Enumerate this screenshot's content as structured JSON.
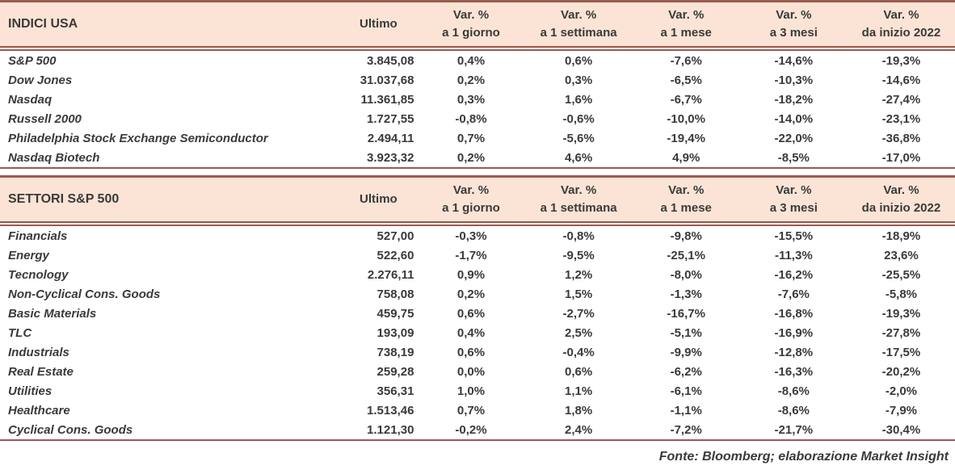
{
  "colors": {
    "header_bg": "#fbe4d5",
    "border": "#9a5a50",
    "text": "#3a3a3a"
  },
  "columns": {
    "ultimo_label": "Ultimo",
    "var_label": "Var. %",
    "periods": [
      "a 1 giorno",
      "a 1 settimana",
      "a 1 mese",
      "a 3 mesi",
      "da inizio 2022"
    ]
  },
  "tables": [
    {
      "title": "INDICI USA",
      "rows": [
        {
          "name": "S&P 500",
          "ultimo": "3.845,08",
          "vars": [
            "0,4%",
            "0,6%",
            "-7,6%",
            "-14,6%",
            "-19,3%"
          ]
        },
        {
          "name": "Dow Jones",
          "ultimo": "31.037,68",
          "vars": [
            "0,2%",
            "0,3%",
            "-6,5%",
            "-10,3%",
            "-14,6%"
          ]
        },
        {
          "name": "Nasdaq",
          "ultimo": "11.361,85",
          "vars": [
            "0,3%",
            "1,6%",
            "-6,7%",
            "-18,2%",
            "-27,4%"
          ]
        },
        {
          "name": "Russell 2000",
          "ultimo": "1.727,55",
          "vars": [
            "-0,8%",
            "-0,6%",
            "-10,0%",
            "-14,0%",
            "-23,1%"
          ]
        },
        {
          "name": "Philadelphia Stock Exchange Semiconductor",
          "ultimo": "2.494,11",
          "vars": [
            "0,7%",
            "-5,6%",
            "-19,4%",
            "-22,0%",
            "-36,8%"
          ]
        },
        {
          "name": "Nasdaq Biotech",
          "ultimo": "3.923,32",
          "vars": [
            "0,2%",
            "4,6%",
            "4,9%",
            "-8,5%",
            "-17,0%"
          ]
        }
      ]
    },
    {
      "title": "SETTORI S&P 500",
      "rows": [
        {
          "name": "Financials",
          "ultimo": "527,00",
          "vars": [
            "-0,3%",
            "-0,8%",
            "-9,8%",
            "-15,5%",
            "-18,9%"
          ]
        },
        {
          "name": "Energy",
          "ultimo": "522,60",
          "vars": [
            "-1,7%",
            "-9,5%",
            "-25,1%",
            "-11,3%",
            "23,6%"
          ]
        },
        {
          "name": "Tecnology",
          "ultimo": "2.276,11",
          "vars": [
            "0,9%",
            "1,2%",
            "-8,0%",
            "-16,2%",
            "-25,5%"
          ]
        },
        {
          "name": "Non-Cyclical Cons. Goods",
          "ultimo": "758,08",
          "vars": [
            "0,2%",
            "1,5%",
            "-1,3%",
            "-7,6%",
            "-5,8%"
          ]
        },
        {
          "name": "Basic Materials",
          "ultimo": "459,75",
          "vars": [
            "0,6%",
            "-2,7%",
            "-16,7%",
            "-16,8%",
            "-19,3%"
          ]
        },
        {
          "name": "TLC",
          "ultimo": "193,09",
          "vars": [
            "0,4%",
            "2,5%",
            "-5,1%",
            "-16,9%",
            "-27,8%"
          ]
        },
        {
          "name": "Industrials",
          "ultimo": "738,19",
          "vars": [
            "0,6%",
            "-0,4%",
            "-9,9%",
            "-12,8%",
            "-17,5%"
          ]
        },
        {
          "name": "Real Estate",
          "ultimo": "259,28",
          "vars": [
            "0,0%",
            "0,6%",
            "-6,2%",
            "-16,3%",
            "-20,2%"
          ]
        },
        {
          "name": "Utilities",
          "ultimo": "356,31",
          "vars": [
            "1,0%",
            "1,1%",
            "-6,1%",
            "-8,6%",
            "-2,0%"
          ]
        },
        {
          "name": "Healthcare",
          "ultimo": "1.513,46",
          "vars": [
            "0,7%",
            "1,8%",
            "-1,1%",
            "-8,6%",
            "-7,9%"
          ]
        },
        {
          "name": "Cyclical Cons. Goods",
          "ultimo": "1.121,30",
          "vars": [
            "-0,2%",
            "2,4%",
            "-7,2%",
            "-21,7%",
            "-30,4%"
          ]
        }
      ]
    }
  ],
  "footer": "Fonte: Bloomberg; elaborazione Market Insight",
  "chart_data": [
    {
      "type": "table",
      "title": "INDICI USA",
      "columns": [
        "INDICI USA",
        "Ultimo",
        "Var. % a 1 giorno",
        "Var. % a 1 settimana",
        "Var. % a 1 mese",
        "Var. % a 3 mesi",
        "Var. % da inizio 2022"
      ],
      "rows": [
        [
          "S&P 500",
          3845.08,
          0.4,
          0.6,
          -7.6,
          -14.6,
          -19.3
        ],
        [
          "Dow Jones",
          31037.68,
          0.2,
          0.3,
          -6.5,
          -10.3,
          -14.6
        ],
        [
          "Nasdaq",
          11361.85,
          0.3,
          1.6,
          -6.7,
          -18.2,
          -27.4
        ],
        [
          "Russell 2000",
          1727.55,
          -0.8,
          -0.6,
          -10.0,
          -14.0,
          -23.1
        ],
        [
          "Philadelphia Stock Exchange Semiconductor",
          2494.11,
          0.7,
          -5.6,
          -19.4,
          -22.0,
          -36.8
        ],
        [
          "Nasdaq Biotech",
          3923.32,
          0.2,
          4.6,
          4.9,
          -8.5,
          -17.0
        ]
      ]
    },
    {
      "type": "table",
      "title": "SETTORI S&P 500",
      "columns": [
        "SETTORI S&P 500",
        "Ultimo",
        "Var. % a 1 giorno",
        "Var. % a 1 settimana",
        "Var. % a 1 mese",
        "Var. % a 3 mesi",
        "Var. % da inizio 2022"
      ],
      "rows": [
        [
          "Financials",
          527.0,
          -0.3,
          -0.8,
          -9.8,
          -15.5,
          -18.9
        ],
        [
          "Energy",
          522.6,
          -1.7,
          -9.5,
          -25.1,
          -11.3,
          23.6
        ],
        [
          "Tecnology",
          2276.11,
          0.9,
          1.2,
          -8.0,
          -16.2,
          -25.5
        ],
        [
          "Non-Cyclical Cons. Goods",
          758.08,
          0.2,
          1.5,
          -1.3,
          -7.6,
          -5.8
        ],
        [
          "Basic Materials",
          459.75,
          0.6,
          -2.7,
          -16.7,
          -16.8,
          -19.3
        ],
        [
          "TLC",
          193.09,
          0.4,
          2.5,
          -5.1,
          -16.9,
          -27.8
        ],
        [
          "Industrials",
          738.19,
          0.6,
          -0.4,
          -9.9,
          -12.8,
          -17.5
        ],
        [
          "Real Estate",
          259.28,
          0.0,
          0.6,
          -6.2,
          -16.3,
          -20.2
        ],
        [
          "Utilities",
          356.31,
          1.0,
          1.1,
          -6.1,
          -8.6,
          -2.0
        ],
        [
          "Healthcare",
          1513.46,
          0.7,
          1.8,
          -1.1,
          -8.6,
          -7.9
        ],
        [
          "Cyclical Cons. Goods",
          1121.3,
          -0.2,
          2.4,
          -7.2,
          -21.7,
          -30.4
        ]
      ]
    }
  ]
}
